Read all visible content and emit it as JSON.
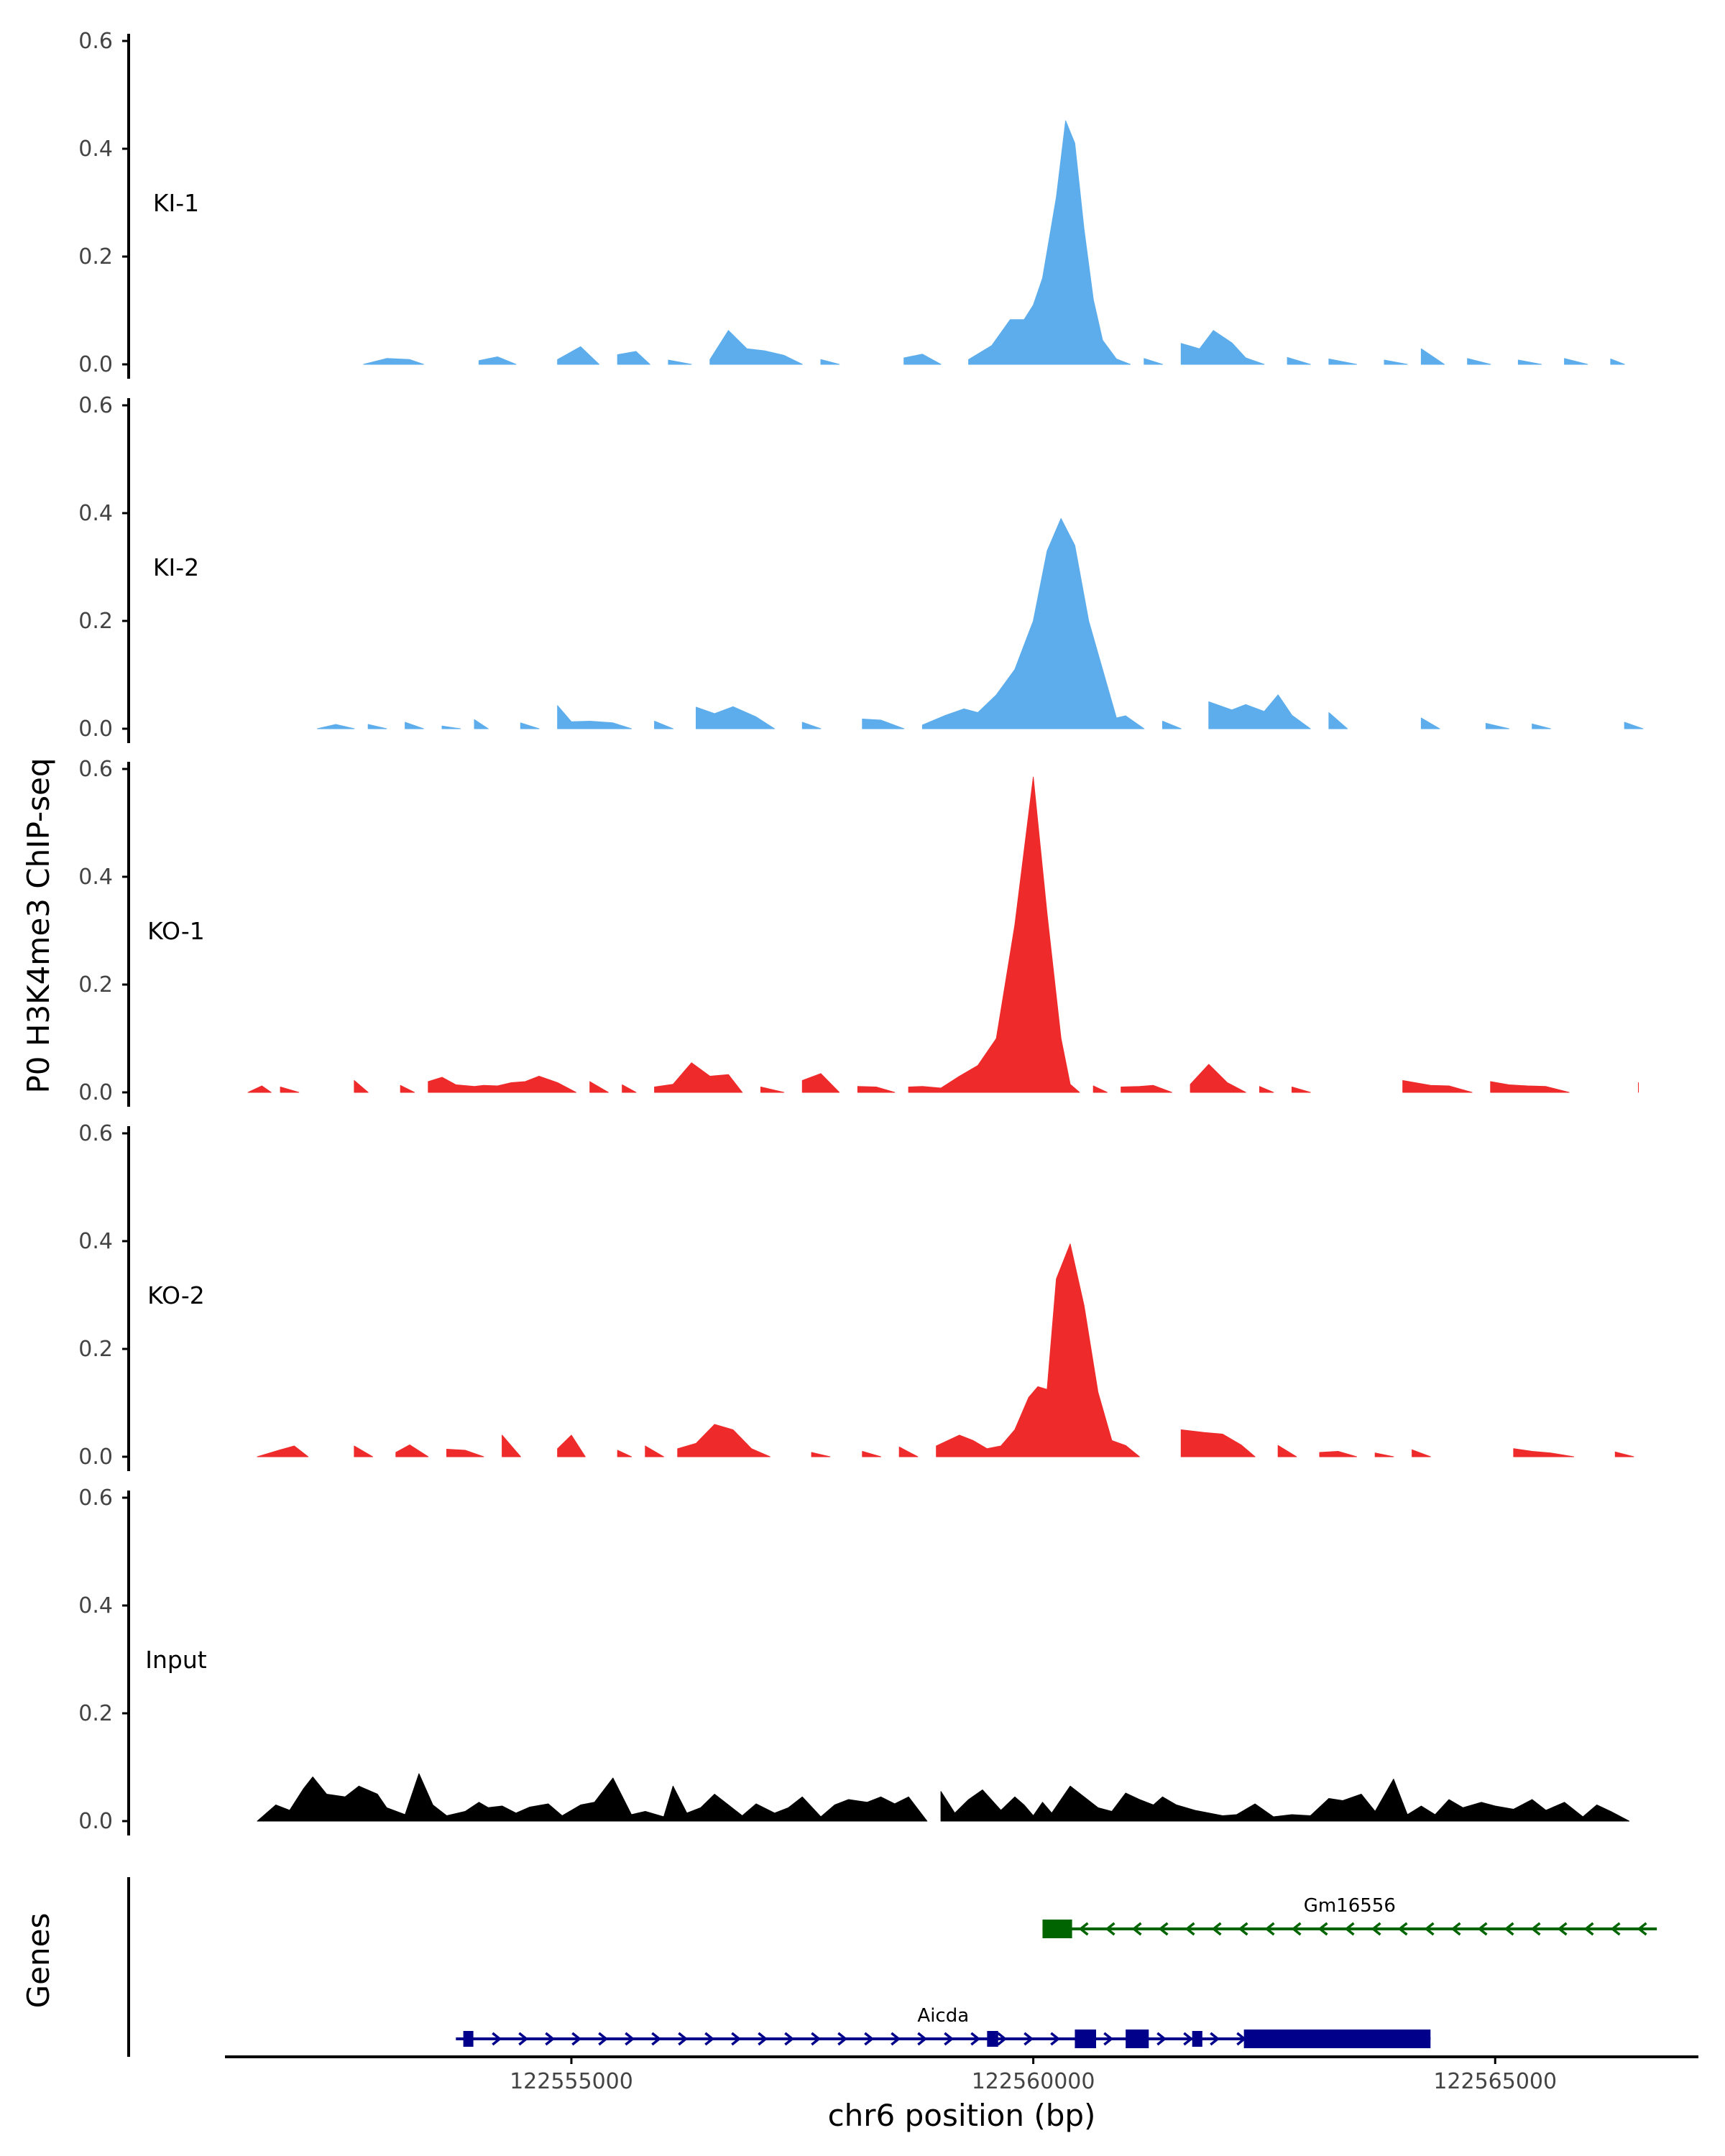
{
  "chart_data": {
    "type": "area",
    "title": "",
    "ylabel": "P0 H3K4me3 ChIP-seq",
    "xlabel": "chr6 position (bp)",
    "genes_label": "Genes",
    "ylim": [
      0,
      0.6
    ],
    "y_ticks": [
      0.0,
      0.2,
      0.4,
      0.6
    ],
    "y_tick_labels": [
      "0.0",
      "0.2",
      "0.4",
      "0.6"
    ],
    "xlim": [
      122551250,
      122567200
    ],
    "x_ticks": [
      122555000,
      122560000,
      122565000
    ],
    "x_tick_labels": [
      "122555000",
      "122560000",
      "122565000"
    ],
    "tracks": [
      {
        "name": "KI-1",
        "color": "#5DADEC",
        "x": [
          122552750,
          122553000,
          122553250,
          122553400,
          122553750,
          122554000,
          122554200,
          122554400,
          122554600,
          122554850,
          122555100,
          122555300,
          122555500,
          122555700,
          122555850,
          122556050,
          122556300,
          122556500,
          122556700,
          122556900,
          122557100,
          122557300,
          122557500,
          122557700,
          122557900,
          122558100,
          122558350,
          122558600,
          122558800,
          122559000,
          122559300,
          122559550,
          122559750,
          122559900,
          122560000,
          122560100,
          122560250,
          122560350,
          122560450,
          122560550,
          122560650,
          122560750,
          122560900,
          122561050,
          122561200,
          122561400,
          122561600,
          122561800,
          122561950,
          122562150,
          122562300,
          122562500,
          122562750,
          122563000,
          122563200,
          122563500,
          122563800,
          122564050,
          122564200,
          122564450,
          122564700,
          122564950,
          122565250,
          122565500,
          122565750,
          122566000,
          122566250,
          122566400
        ],
        "values": [
          0,
          0.011,
          0.009,
          0,
          0,
          0.007,
          0.014,
          0,
          0,
          0.009,
          0.033,
          0,
          0.018,
          0.024,
          0,
          0.008,
          0,
          0.009,
          0.063,
          0.029,
          0.025,
          0.017,
          0,
          0.009,
          0,
          0,
          0,
          0.012,
          0.019,
          0,
          0.009,
          0.035,
          0.083,
          0.083,
          0.11,
          0.16,
          0.31,
          0.452,
          0.41,
          0.25,
          0.12,
          0.045,
          0.01,
          0,
          0.011,
          0,
          0.039,
          0.029,
          0.063,
          0.04,
          0.012,
          0,
          0.013,
          0,
          0.01,
          0,
          0.008,
          0,
          0.029,
          0,
          0.011,
          0,
          0.008,
          0,
          0.011,
          0,
          0.01,
          0
        ]
      },
      {
        "name": "KI-2",
        "color": "#5DADEC",
        "x": [
          122552250,
          122552450,
          122552650,
          122552800,
          122553000,
          122553200,
          122553400,
          122553600,
          122553800,
          122553950,
          122554100,
          122554200,
          122554450,
          122554650,
          122554850,
          122555000,
          122555200,
          122555450,
          122555650,
          122555900,
          122556100,
          122556350,
          122556550,
          122556750,
          122557000,
          122557200,
          122557500,
          122557700,
          122557950,
          122558150,
          122558350,
          122558600,
          122558800,
          122559050,
          122559250,
          122559400,
          122559600,
          122559800,
          122560000,
          122560150,
          122560300,
          122560450,
          122560600,
          122560750,
          122560900,
          122561000,
          122561200,
          122561400,
          122561600,
          122561750,
          122561900,
          122562150,
          122562300,
          122562500,
          122562650,
          122562800,
          122563000,
          122563200,
          122563400,
          122563600,
          122563800,
          122564000,
          122564200,
          122564400,
          122564600,
          122564900,
          122565150,
          122565400,
          122565600,
          122565850,
          122566050,
          122566250,
          122566400,
          122566600
        ],
        "values": [
          0,
          0.008,
          0,
          0.008,
          0,
          0.012,
          0,
          0.005,
          0,
          0.017,
          0,
          0,
          0.011,
          0,
          0.043,
          0.013,
          0.014,
          0.011,
          0,
          0.014,
          0,
          0.04,
          0.028,
          0.041,
          0.022,
          0,
          0.012,
          0,
          0,
          0.018,
          0.016,
          0,
          0.007,
          0.025,
          0.037,
          0.03,
          0.063,
          0.11,
          0.2,
          0.33,
          0.39,
          0.34,
          0.2,
          0.11,
          0.02,
          0.024,
          0,
          0.014,
          0,
          0,
          0.05,
          0.035,
          0.045,
          0.032,
          0.063,
          0.025,
          0,
          0.03,
          0,
          0,
          0,
          0,
          0.02,
          0,
          0,
          0.01,
          0,
          0.009,
          0,
          0,
          0,
          0,
          0.012,
          0
        ]
      },
      {
        "name": "KO-1",
        "color": "#EE2A2A",
        "x": [
          122551500,
          122551650,
          122551750,
          122551850,
          122552050,
          122552250,
          122552650,
          122552800,
          122552950,
          122553150,
          122553300,
          122553450,
          122553600,
          122553750,
          122553950,
          122554050,
          122554200,
          122554350,
          122554500,
          122554650,
          122554850,
          122555050,
          122555200,
          122555400,
          122555550,
          122555700,
          122555900,
          122556100,
          122556300,
          122556500,
          122556700,
          122556850,
          122557050,
          122557300,
          122557500,
          122557700,
          122557900,
          122558100,
          122558300,
          122558500,
          122558650,
          122558800,
          122559000,
          122559200,
          122559400,
          122559600,
          122559800,
          122560000,
          122560150,
          122560300,
          122560400,
          122560500,
          122560650,
          122560800,
          122560950,
          122561150,
          122561300,
          122561500,
          122561700,
          122561900,
          122562100,
          122562300,
          122562450,
          122562600,
          122562800,
          122563000,
          122563200,
          122563350,
          122563500,
          122563700,
          122564000,
          122564300,
          122564500,
          122564750,
          122564950,
          122565150,
          122565350,
          122565550,
          122565800,
          122566050,
          122566300,
          122566550
        ],
        "values": [
          0,
          0.012,
          0,
          0.01,
          0,
          0,
          0.022,
          0,
          0,
          0.013,
          0,
          0.02,
          0.028,
          0.014,
          0.011,
          0.013,
          0.012,
          0.018,
          0.02,
          0.03,
          0.018,
          0,
          0.02,
          0,
          0.014,
          0,
          0.01,
          0.015,
          0.055,
          0.03,
          0.033,
          0,
          0.01,
          0,
          0.022,
          0.035,
          0,
          0.011,
          0.01,
          0,
          0.01,
          0.011,
          0.008,
          0.03,
          0.05,
          0.1,
          0.31,
          0.585,
          0.33,
          0.1,
          0.015,
          0,
          0.012,
          0,
          0.01,
          0.011,
          0.013,
          0,
          0.015,
          0.052,
          0.018,
          0,
          0.011,
          0,
          0.01,
          0,
          0,
          0,
          0,
          0,
          0.022,
          0.013,
          0.012,
          0,
          0.02,
          0.014,
          0.012,
          0.011,
          0,
          0,
          0,
          0.018
        ]
      },
      {
        "name": "KO-2",
        "color": "#EE2A2A",
        "x": [
          122551600,
          122551850,
          122552000,
          122552150,
          122552450,
          122552650,
          122552850,
          122553100,
          122553250,
          122553450,
          122553650,
          122553850,
          122554050,
          122554250,
          122554450,
          122554700,
          122554850,
          122555000,
          122555150,
          122555300,
          122555500,
          122555650,
          122555800,
          122556000,
          122556150,
          122556350,
          122556550,
          122556750,
          122556950,
          122557150,
          122557350,
          122557600,
          122557800,
          122558000,
          122558150,
          122558350,
          122558550,
          122558750,
          122558950,
          122559200,
          122559350,
          122559500,
          122559650,
          122559800,
          122559950,
          122560050,
          122560150,
          122560250,
          122560400,
          122560550,
          122560700,
          122560850,
          122561000,
          122561150,
          122561300,
          122561500,
          122561600,
          122561850,
          122562050,
          122562250,
          122562400,
          122562650,
          122562850,
          122563100,
          122563300,
          122563500,
          122563700,
          122563900,
          122564100,
          122564300,
          122564500,
          122564750,
          122564950,
          122565200,
          122565400,
          122565600,
          122565850,
          122566050,
          122566300,
          122566500
        ],
        "values": [
          0,
          0.013,
          0.02,
          0,
          0,
          0.02,
          0,
          0.008,
          0.022,
          0,
          0.014,
          0.012,
          0,
          0.04,
          0,
          0,
          0.015,
          0.04,
          0,
          0,
          0.012,
          0,
          0.02,
          0,
          0.015,
          0.025,
          0.06,
          0.05,
          0.015,
          0,
          0,
          0.008,
          0,
          0,
          0.01,
          0,
          0.018,
          0,
          0.02,
          0.04,
          0.03,
          0.015,
          0.02,
          0.05,
          0.11,
          0.13,
          0.125,
          0.33,
          0.395,
          0.28,
          0.12,
          0.03,
          0.021,
          0,
          0,
          0,
          0.05,
          0.045,
          0.042,
          0.022,
          0,
          0.021,
          0,
          0.008,
          0.01,
          0,
          0.007,
          0,
          0.013,
          0,
          0,
          0,
          0,
          0.015,
          0.01,
          0.007,
          0,
          0,
          0.009,
          0
        ]
      },
      {
        "name": "Input",
        "color": "#000000",
        "x": [
          122551600,
          122551800,
          122551950,
          122552100,
          122552200,
          122552350,
          122552550,
          122552700,
          122552900,
          122553000,
          122553200,
          122553350,
          122553500,
          122553650,
          122553850,
          122554000,
          122554100,
          122554250,
          122554400,
          122554550,
          122554750,
          122554900,
          122555100,
          122555250,
          122555450,
          122555650,
          122555800,
          122556000,
          122556100,
          122556250,
          122556400,
          122556550,
          122556700,
          122556850,
          122557000,
          122557200,
          122557350,
          122557500,
          122557700,
          122557850,
          122558000,
          122558200,
          122558350,
          122558500,
          122558650,
          122558850,
          122559000,
          122559150,
          122559300,
          122559450,
          122559650,
          122559800,
          122559900,
          122560000,
          122560100,
          122560200,
          122560400,
          122560550,
          122560700,
          122560850,
          122561000,
          122561150,
          122561300,
          122561400,
          122561550,
          122561750,
          122561900,
          122562050,
          122562200,
          122562400,
          122562600,
          122562800,
          122563000,
          122563200,
          122563350,
          122563550,
          122563700,
          122563900,
          122564050,
          122564200,
          122564350,
          122564500,
          122564650,
          122564850,
          122565000,
          122565200,
          122565400,
          122565550,
          122565750,
          122565950,
          122566100,
          122566250,
          122566450
        ],
        "values": [
          0,
          0.03,
          0.02,
          0.06,
          0.082,
          0.05,
          0.045,
          0.065,
          0.05,
          0.025,
          0.012,
          0.088,
          0.03,
          0.01,
          0.018,
          0.035,
          0.025,
          0.028,
          0.015,
          0.026,
          0.032,
          0.01,
          0.03,
          0.035,
          0.08,
          0.012,
          0.018,
          0.008,
          0.065,
          0.015,
          0.025,
          0.05,
          0.03,
          0.01,
          0.032,
          0.015,
          0.025,
          0.045,
          0.008,
          0.03,
          0.04,
          0.035,
          0.045,
          0.032,
          0.045,
          0,
          0.055,
          0.015,
          0.04,
          0.058,
          0.02,
          0.045,
          0.03,
          0.01,
          0.035,
          0.015,
          0.065,
          0.045,
          0.025,
          0.018,
          0.052,
          0.04,
          0.03,
          0.045,
          0.03,
          0.02,
          0.015,
          0.01,
          0.012,
          0.032,
          0.008,
          0.012,
          0.01,
          0.042,
          0.038,
          0.05,
          0.018,
          0.078,
          0.012,
          0.028,
          0.012,
          0.04,
          0.025,
          0.035,
          0.028,
          0.022,
          0.04,
          0.02,
          0.035,
          0.008,
          0.03,
          0.018,
          0
        ]
      }
    ],
    "genes": [
      {
        "name": "Gm16556",
        "color": "#006400",
        "strand": "-",
        "start": 122560100,
        "end": 122566750,
        "exons": [
          [
            122560100,
            122560420
          ]
        ]
      },
      {
        "name": "Aicda",
        "color": "#00008B",
        "strand": "+",
        "start": 122553750,
        "end": 122564300,
        "exons": [
          [
            122553830,
            122553900
          ],
          [
            122559500,
            122559620
          ],
          [
            122560450,
            122560680
          ],
          [
            122561000,
            122561250
          ],
          [
            122561720,
            122561830
          ],
          [
            122562280,
            122564300
          ]
        ]
      }
    ]
  }
}
